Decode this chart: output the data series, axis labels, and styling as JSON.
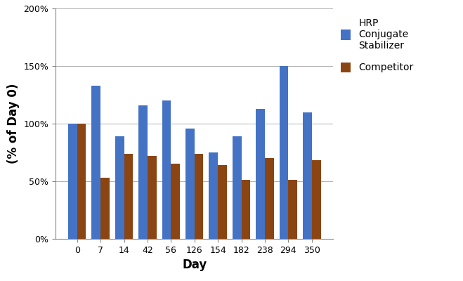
{
  "days": [
    0,
    7,
    14,
    42,
    56,
    126,
    154,
    182,
    238,
    294,
    350
  ],
  "hrp_values": [
    100,
    133,
    89,
    116,
    120,
    96,
    75,
    89,
    113,
    150,
    110
  ],
  "competitor_values": [
    100,
    53,
    74,
    72,
    65,
    74,
    64,
    51,
    70,
    51,
    68
  ],
  "hrp_color": "#4472C4",
  "competitor_color": "#8B4513",
  "xlabel": "Day",
  "ylabel": "(% of Day 0)",
  "ylim": [
    0,
    200
  ],
  "yticks": [
    0,
    50,
    100,
    150,
    200
  ],
  "legend_hrp": "HRP\nConjugate\nStabilizer",
  "legend_competitor": "Competitor",
  "bar_width": 0.38,
  "axis_label_fontsize": 12,
  "tick_fontsize": 9,
  "legend_fontsize": 10,
  "background_color": "#ffffff",
  "grid_color": "#b0b0b0"
}
